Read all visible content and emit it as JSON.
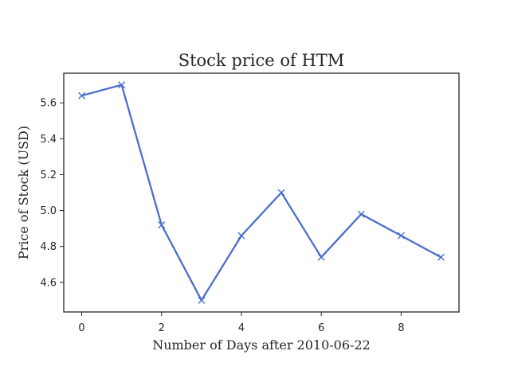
{
  "chart_data": {
    "type": "line",
    "title": "Stock price of HTM",
    "xlabel": "Number of Days after 2010-06-22",
    "ylabel": "Price of Stock (USD)",
    "xlim": [
      -0.45,
      9.45
    ],
    "ylim": [
      4.435,
      5.765
    ],
    "xticks": [
      0,
      2,
      4,
      6,
      8
    ],
    "yticks": [
      4.6,
      4.8,
      5.0,
      5.2,
      5.4,
      5.6
    ],
    "xtick_labels": [
      "0",
      "2",
      "4",
      "6",
      "8"
    ],
    "ytick_labels": [
      "4.6",
      "4.8",
      "5.0",
      "5.2",
      "5.4",
      "5.6"
    ],
    "grid": false,
    "series": [
      {
        "color": "#4a6fca",
        "marker": "x",
        "x": [
          0,
          1,
          2,
          3,
          4,
          5,
          6,
          7,
          8,
          9
        ],
        "y": [
          5.64,
          5.7,
          4.92,
          4.5,
          4.86,
          5.1,
          4.74,
          4.98,
          4.86,
          4.74
        ]
      }
    ]
  }
}
